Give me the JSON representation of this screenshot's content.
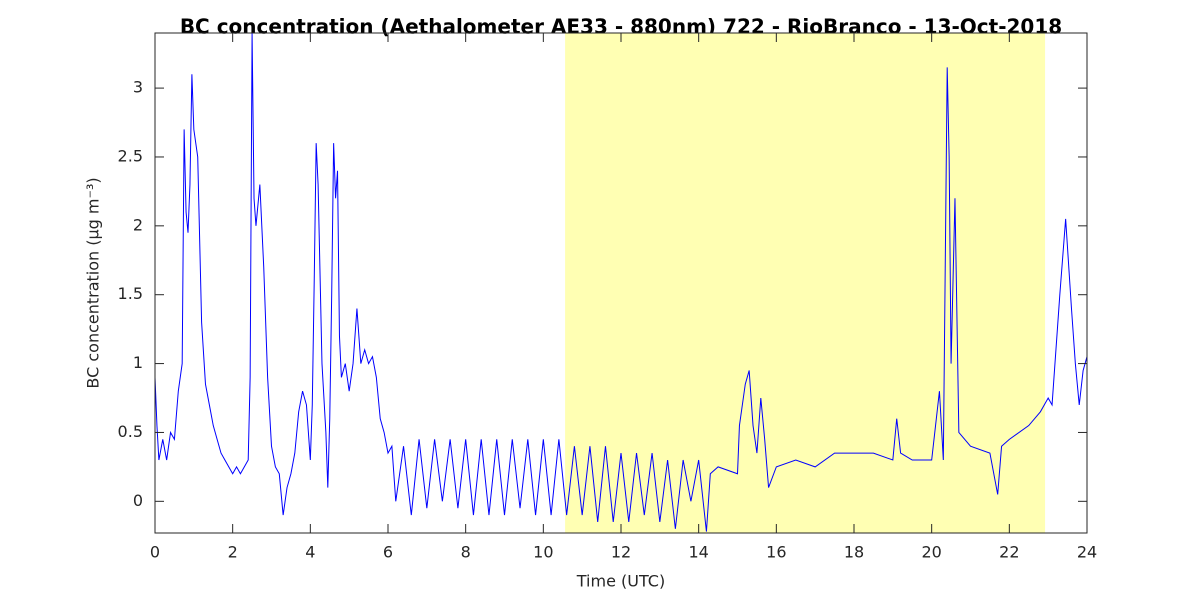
{
  "chart_data": {
    "type": "line",
    "title": "BC concentration (Aethalometer AE33 - 880nm) 722 - RioBranco - 13-Oct-2018",
    "xlabel": "Time (UTC)",
    "ylabel": "BC concentration (μg m⁻³)",
    "color": "#0000ff",
    "highlight_color": "#ffffb3",
    "highlight_xrange": [
      10.56,
      22.92
    ],
    "xlim": [
      0,
      24
    ],
    "xticks": [
      0,
      2,
      4,
      6,
      8,
      10,
      12,
      14,
      16,
      18,
      20,
      22,
      24
    ],
    "ylim": [
      -0.23,
      3.4
    ],
    "yticks": [
      0,
      0.5,
      1,
      1.5,
      2,
      2.5,
      3
    ],
    "x": [
      0,
      0.05,
      0.1,
      0.2,
      0.3,
      0.4,
      0.5,
      0.6,
      0.7,
      0.75,
      0.8,
      0.85,
      0.9,
      0.95,
      1.0,
      1.1,
      1.2,
      1.3,
      1.4,
      1.5,
      1.6,
      1.7,
      1.8,
      1.9,
      2.0,
      2.1,
      2.2,
      2.3,
      2.4,
      2.45,
      2.5,
      2.55,
      2.6,
      2.7,
      2.8,
      2.9,
      3.0,
      3.1,
      3.2,
      3.3,
      3.4,
      3.5,
      3.6,
      3.7,
      3.8,
      3.9,
      4.0,
      4.05,
      4.1,
      4.15,
      4.2,
      4.3,
      4.4,
      4.45,
      4.5,
      4.55,
      4.6,
      4.65,
      4.7,
      4.75,
      4.8,
      4.9,
      5.0,
      5.1,
      5.2,
      5.3,
      5.4,
      5.5,
      5.6,
      5.7,
      5.8,
      5.9,
      6.0,
      6.1,
      6.2,
      6.4,
      6.6,
      6.8,
      7.0,
      7.2,
      7.4,
      7.6,
      7.8,
      8.0,
      8.2,
      8.4,
      8.6,
      8.8,
      9.0,
      9.2,
      9.4,
      9.6,
      9.8,
      10.0,
      10.2,
      10.4,
      10.6,
      10.8,
      11.0,
      11.2,
      11.4,
      11.6,
      11.8,
      12.0,
      12.2,
      12.4,
      12.6,
      12.8,
      13.0,
      13.2,
      13.4,
      13.6,
      13.8,
      14.0,
      14.2,
      14.3,
      14.5,
      15.0,
      15.05,
      15.2,
      15.3,
      15.4,
      15.5,
      15.6,
      15.7,
      15.8,
      16.0,
      16.5,
      17.0,
      17.5,
      18.0,
      18.5,
      19.0,
      19.1,
      19.2,
      19.5,
      20.0,
      20.1,
      20.2,
      20.3,
      20.4,
      20.45,
      20.5,
      20.6,
      20.7,
      21.0,
      21.5,
      21.7,
      21.8,
      22.0,
      22.5,
      22.8,
      23.0,
      23.1,
      23.3,
      23.45,
      23.6,
      23.7,
      23.8,
      23.9,
      24.0
    ],
    "values": [
      0.9,
      0.55,
      0.3,
      0.45,
      0.3,
      0.5,
      0.45,
      0.8,
      1.0,
      2.7,
      2.1,
      1.95,
      2.3,
      3.1,
      2.7,
      2.5,
      1.3,
      0.85,
      0.7,
      0.55,
      0.45,
      0.35,
      0.3,
      0.25,
      0.2,
      0.25,
      0.2,
      0.25,
      0.3,
      0.9,
      3.4,
      2.2,
      2.0,
      2.3,
      1.7,
      0.9,
      0.4,
      0.25,
      0.2,
      -0.1,
      0.1,
      0.2,
      0.35,
      0.65,
      0.8,
      0.7,
      0.3,
      0.7,
      1.6,
      2.6,
      2.3,
      1.0,
      0.5,
      0.1,
      0.6,
      1.5,
      2.6,
      2.2,
      2.4,
      1.2,
      0.9,
      1.0,
      0.8,
      1.0,
      1.4,
      1.0,
      1.1,
      1.0,
      1.05,
      0.9,
      0.6,
      0.5,
      0.35,
      0.4,
      0.0,
      0.4,
      -0.1,
      0.45,
      -0.05,
      0.45,
      0.0,
      0.45,
      -0.05,
      0.45,
      -0.1,
      0.45,
      -0.1,
      0.45,
      -0.1,
      0.45,
      -0.05,
      0.45,
      -0.1,
      0.45,
      -0.1,
      0.45,
      -0.1,
      0.4,
      -0.1,
      0.4,
      -0.15,
      0.4,
      -0.15,
      0.35,
      -0.15,
      0.35,
      -0.1,
      0.35,
      -0.15,
      0.3,
      -0.2,
      0.3,
      0.0,
      0.3,
      -0.22,
      0.2,
      0.25,
      0.2,
      0.55,
      0.85,
      0.95,
      0.55,
      0.35,
      0.75,
      0.45,
      0.1,
      0.25,
      0.3,
      0.25,
      0.35,
      0.35,
      0.35,
      0.3,
      0.6,
      0.35,
      0.3,
      0.3,
      0.55,
      0.8,
      0.3,
      3.15,
      2.5,
      1.0,
      2.2,
      0.5,
      0.4,
      0.35,
      0.05,
      0.4,
      0.45,
      0.55,
      0.65,
      0.75,
      0.7,
      1.5,
      2.05,
      1.4,
      1.0,
      0.7,
      0.95,
      1.05
    ]
  }
}
